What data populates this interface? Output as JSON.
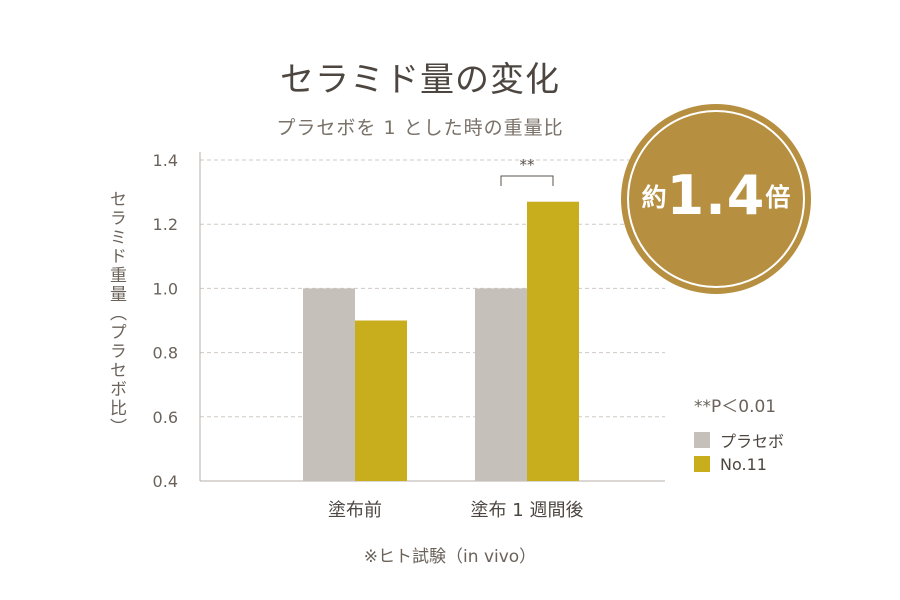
{
  "chart_data": {
    "type": "bar",
    "title": "セラミド量の変化",
    "subtitle": "プラセボを 1 とした時の重量比",
    "ylabel": "セラミド重量（プラセボ比）",
    "xlabel": "",
    "categories": [
      "塗布前",
      "塗布 1 週間後"
    ],
    "series": [
      {
        "name": "プラセボ",
        "color": "#c5c0ba",
        "values": [
          1.0,
          1.0
        ]
      },
      {
        "name": "No.11",
        "color": "#c8ad1c",
        "values": [
          0.9,
          1.27
        ]
      }
    ],
    "ylim": [
      0.4,
      1.4
    ],
    "yticks": [
      "0.4",
      "0.6",
      "0.8",
      "1.0",
      "1.2",
      "1.4"
    ],
    "grid": true,
    "legend_position": "right",
    "significance": {
      "category_index": 1,
      "label": "**"
    }
  },
  "badge": {
    "prefix": "約",
    "value": "1.4",
    "suffix": "倍",
    "color": "#b68f40"
  },
  "significance_note": "**P＜0.01",
  "footnote": "※ヒト試験（in vivo）"
}
